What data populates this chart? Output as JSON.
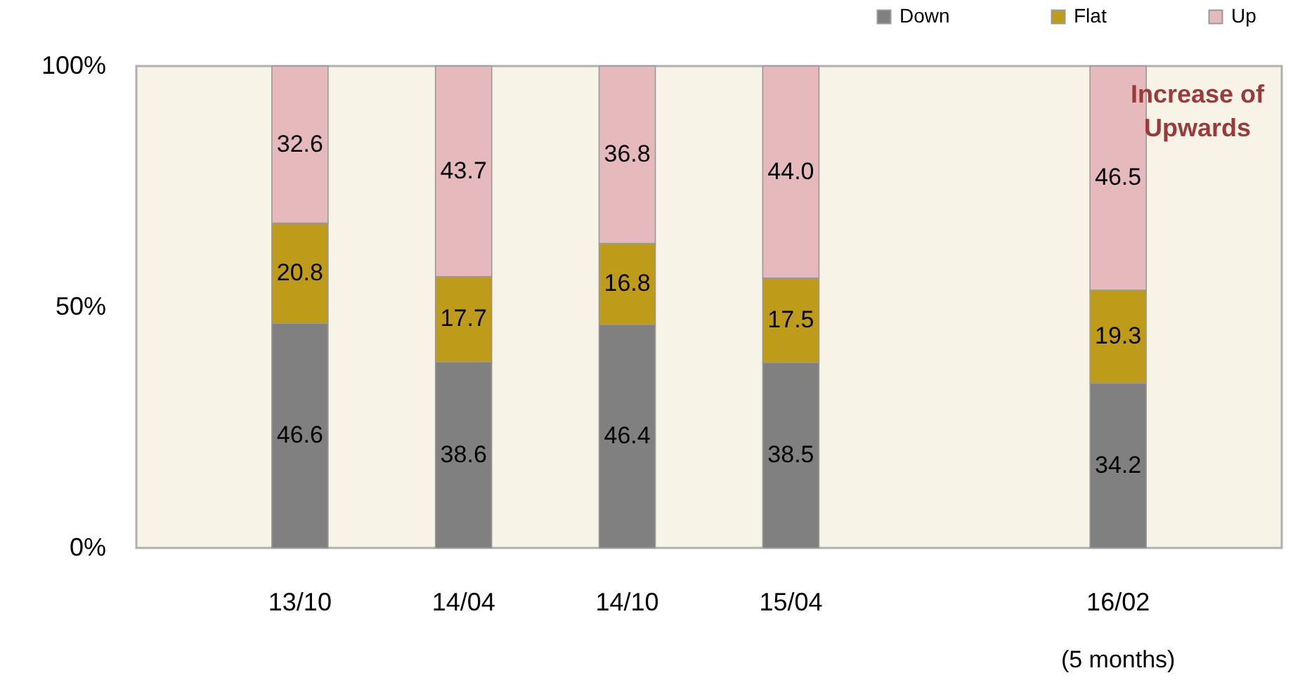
{
  "chart_data": {
    "type": "bar",
    "stacked": true,
    "categories": [
      "13/10",
      "14/04",
      "14/10",
      "15/04",
      null,
      "16/02"
    ],
    "series": [
      {
        "name": "Down",
        "color": "#808080",
        "values": [
          46.6,
          38.6,
          46.4,
          38.5,
          null,
          34.2
        ],
        "value_labels": [
          "46.6",
          "38.6",
          "46.4",
          "38.5",
          null,
          "34.2"
        ]
      },
      {
        "name": "Flat",
        "color": "#bf9b1a",
        "values": [
          20.8,
          17.7,
          16.8,
          17.5,
          null,
          19.3
        ],
        "value_labels": [
          "20.8",
          "17.7",
          "16.8",
          "17.5",
          null,
          "19.3"
        ]
      },
      {
        "name": "Up",
        "color": "#e6b9bd",
        "values": [
          32.6,
          43.7,
          36.8,
          44.0,
          null,
          46.5
        ],
        "value_labels": [
          "32.6",
          "43.7",
          "36.8",
          "44.0",
          null,
          "46.5"
        ]
      }
    ],
    "ylim": [
      0,
      100
    ],
    "yticks": [
      {
        "value": 0,
        "label": "0%"
      },
      {
        "value": 50,
        "label": "50%"
      },
      {
        "value": 100,
        "label": "100%"
      }
    ],
    "grid": false,
    "legend": "top right",
    "annotations": [
      "Increase of\nUpwards",
      "(5 months)"
    ]
  }
}
